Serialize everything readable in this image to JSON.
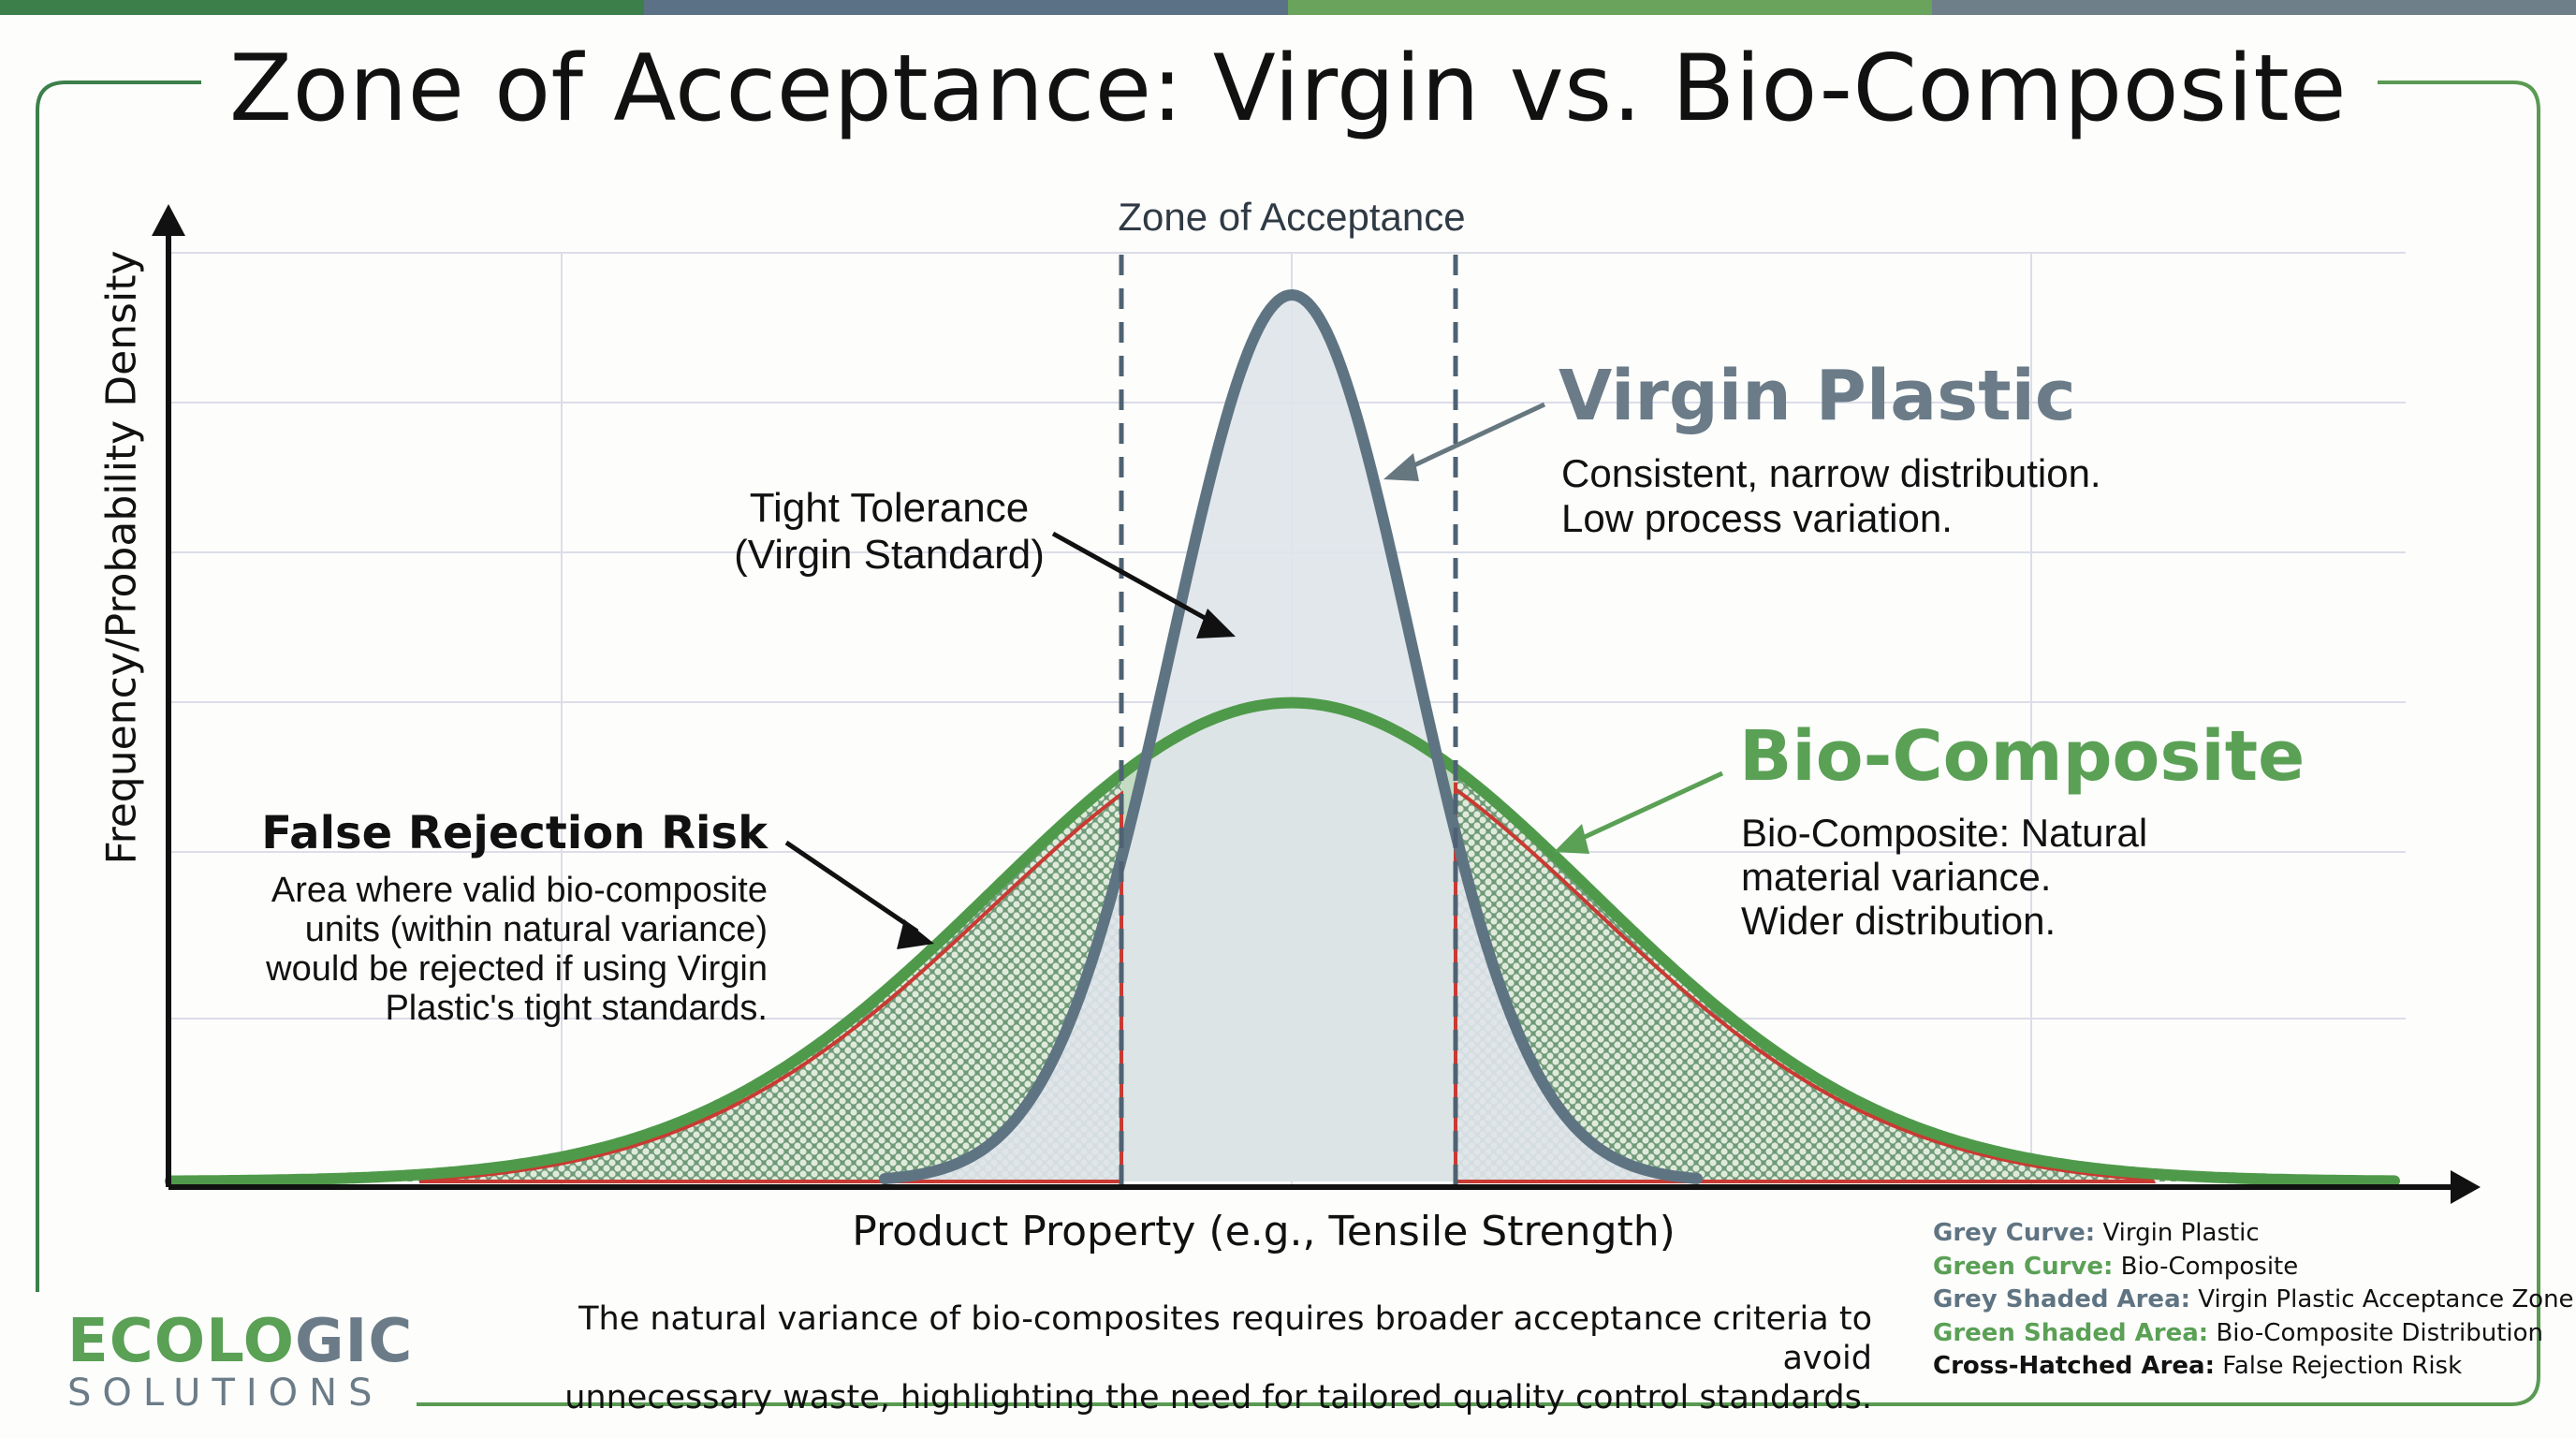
{
  "header": {
    "title": "Zone of Acceptance: Virgin vs. Bio-Composite",
    "topbar_colors": [
      "#3c7f4a",
      "#5b7185",
      "#6aa35c",
      "#6f7f8a"
    ]
  },
  "colors": {
    "virgin_curve": "#5f7482",
    "virgin_fill": "#dfe4ea",
    "bio_curve": "#4f9a4a",
    "bio_fill": "#c4dcc3",
    "hatch": "#6f9a78",
    "risk_border": "#c93a32",
    "frame": "#4e8f4e",
    "axis": "#111111",
    "grid": "#d9dbe6"
  },
  "annotations": {
    "zone_label": "Zone of Acceptance",
    "tight_tolerance": [
      "Tight Tolerance",
      "(Virgin Standard)"
    ],
    "virgin": {
      "title": "Virgin Plastic",
      "desc": [
        "Consistent, narrow distribution.",
        "Low process variation."
      ]
    },
    "bio": {
      "title": "Bio-Composite",
      "desc": [
        "Bio-Composite: Natural",
        "material variance.",
        "Wider distribution."
      ]
    },
    "false_rejection": {
      "title": "False Rejection Risk",
      "desc": [
        "Area where valid bio-composite",
        "units (within natural variance)",
        "would be rejected if using Virgin",
        "Plastic's tight standards."
      ]
    }
  },
  "axes": {
    "ylabel": "Frequency/Probability Density",
    "xlabel": "Product Property (e.g., Tensile Strength)"
  },
  "caption": [
    "The natural variance of bio-composites requires broader acceptance criteria to avoid",
    "unnecessary waste, highlighting the need for tailored quality control standards."
  ],
  "legend": [
    {
      "key": "Grey Curve:",
      "value": "Virgin Plastic",
      "color": "#5f7482"
    },
    {
      "key": "Green Curve:",
      "value": "Bio-Composite",
      "color": "#5aa055"
    },
    {
      "key": "Grey Shaded Area:",
      "value": "Virgin Plastic Acceptance Zone",
      "color": "#5f7482"
    },
    {
      "key": "Green Shaded Area:",
      "value": "Bio-Composite Distribution",
      "color": "#5aa055"
    },
    {
      "key": "Cross-Hatched Area:",
      "value": "False Rejection Risk",
      "color": "#111111"
    }
  ],
  "logo": {
    "line1_green": "ECOLO",
    "line1_grey": "GIC",
    "line2": "SOLUTIONS"
  },
  "chart_data": {
    "type": "line",
    "title": "Zone of Acceptance: Virgin vs. Bio-Composite",
    "xlabel": "Product Property (e.g., Tensile Strength)",
    "ylabel": "Frequency/Probability Density",
    "grid": true,
    "ticks": "none (no numeric tick labels shown)",
    "series": [
      {
        "name": "Virgin Plastic",
        "distribution": "normal",
        "mean": 0,
        "relative_sigma": 1.0,
        "relative_peak": 1.0,
        "fill": "grey"
      },
      {
        "name": "Bio-Composite",
        "distribution": "normal",
        "mean": 0,
        "relative_sigma": 2.5,
        "relative_peak": 0.54,
        "fill": "green"
      }
    ],
    "acceptance_zone": {
      "lower": -1.4,
      "upper": 1.4,
      "units": "virgin sigma",
      "style": "dashed vertical lines"
    },
    "shaded_regions": [
      {
        "name": "False Rejection Risk (left tail)",
        "x_range": [
          -4.5,
          -1.4
        ],
        "style": "cross-hatched, red outline"
      },
      {
        "name": "False Rejection Risk (right tail)",
        "x_range": [
          1.4,
          4.5
        ],
        "style": "cross-hatched, red outline"
      }
    ],
    "legend_position": "bottom-right"
  }
}
